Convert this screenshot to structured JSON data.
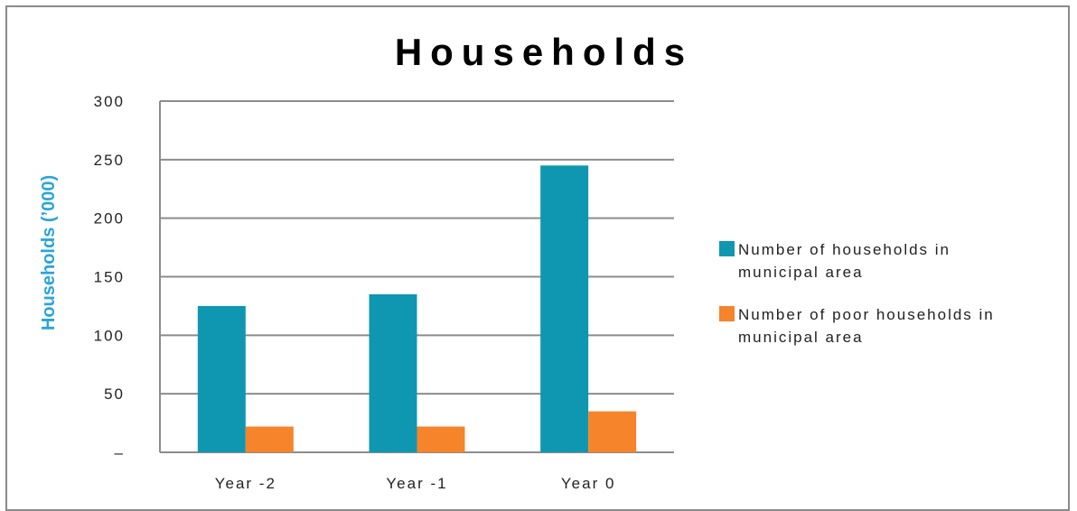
{
  "chart_data": {
    "type": "bar",
    "title": "Households",
    "ylabel": "Households (’000)",
    "xlabel": "",
    "categories": [
      "Year -2",
      "Year -1",
      "Year 0"
    ],
    "y_ticks": [
      "–",
      "50",
      "100",
      "150",
      "200",
      "250",
      "300"
    ],
    "ylim": [
      0,
      300
    ],
    "grid": true,
    "legend_position": "right",
    "series": [
      {
        "name_line1": "Number of households  in",
        "name_line2": "municipal area",
        "values": [
          125,
          135,
          245
        ],
        "color": "#0f97b1"
      },
      {
        "name_line1": "Number of poor households  in",
        "name_line2": "municipal area",
        "values": [
          22,
          22,
          35
        ],
        "color": "#f5842a"
      }
    ],
    "colors": {
      "ylabel": "#2ba5d9",
      "grid": "#8c8c8c"
    }
  }
}
